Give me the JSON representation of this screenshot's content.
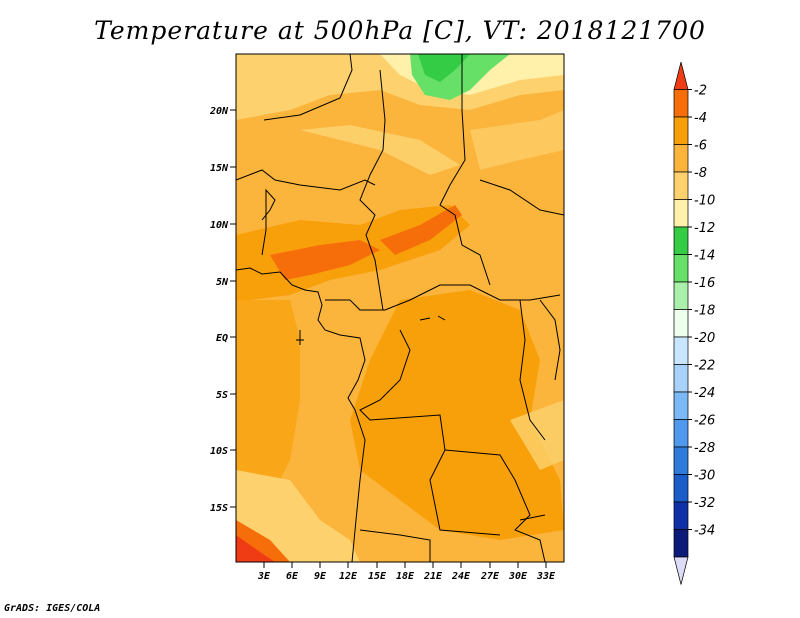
{
  "title": "Temperature at 500hPa [C], VT: 2018121700",
  "footer": "GrADS: IGES/COLA",
  "map": {
    "lat_ticks": [
      "20N",
      "15N",
      "10N",
      "5N",
      "EQ",
      "5S",
      "10S",
      "15S"
    ],
    "lon_ticks": [
      "3E",
      "6E",
      "9E",
      "12E",
      "15E",
      "18E",
      "21E",
      "24E",
      "27E",
      "30E",
      "33E"
    ]
  },
  "colorbar": {
    "labels": [
      "-2",
      "-4",
      "-6",
      "-8",
      "-10",
      "-12",
      "-14",
      "-16",
      "-18",
      "-20",
      "-22",
      "-24",
      "-26",
      "-28",
      "-30",
      "-32",
      "-34"
    ],
    "colors": [
      "#f03c14",
      "#f56e0a",
      "#f8a00a",
      "#fbb43c",
      "#fdd26e",
      "#fff0aa",
      "#33cc44",
      "#66e066",
      "#aaf0aa",
      "#eeffee",
      "#c8e6ff",
      "#a8d2fa",
      "#7cb8f5",
      "#4f98ee",
      "#2f7bdc",
      "#1a5cc8",
      "#1030a8",
      "#0c1a78",
      "#dcdcf8"
    ]
  }
}
